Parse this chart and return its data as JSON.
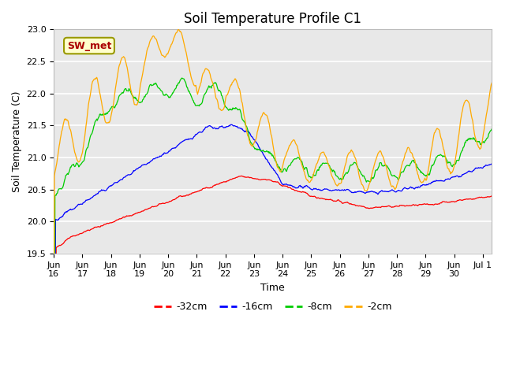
{
  "title": "Soil Temperature Profile C1",
  "xlabel": "Time",
  "ylabel": "Soil Temperature (C)",
  "annotation": "SW_met",
  "ylim": [
    19.5,
    23.0
  ],
  "y_ticks": [
    19.5,
    20.0,
    20.5,
    21.0,
    21.5,
    22.0,
    22.5,
    23.0
  ],
  "x_tick_positions": [
    0,
    1,
    2,
    3,
    4,
    5,
    6,
    7,
    8,
    9,
    10,
    11,
    12,
    13,
    14,
    15
  ],
  "x_tick_labels": [
    "Jun 16",
    "Jun 17",
    "Jun 18",
    "Jun 19",
    "Jun 20",
    "Jun 21",
    "Jun 22",
    "Jun 23",
    "Jun 24",
    "Jun 25",
    "Jun 26",
    "Jun 27",
    "Jun 28",
    "Jun 29",
    "Jun 30",
    "Jul 1"
  ],
  "legend_labels": [
    "-32cm",
    "-16cm",
    "-8cm",
    "-2cm"
  ],
  "line_colors": [
    "#ff0000",
    "#0000ff",
    "#00cc00",
    "#ffaa00"
  ],
  "fig_bg_color": "#ffffff",
  "plot_bg_color": "#e8e8e8",
  "grid_color": "#ffffff",
  "title_fontsize": 12,
  "axis_fontsize": 9,
  "tick_fontsize": 8,
  "legend_fontsize": 9
}
